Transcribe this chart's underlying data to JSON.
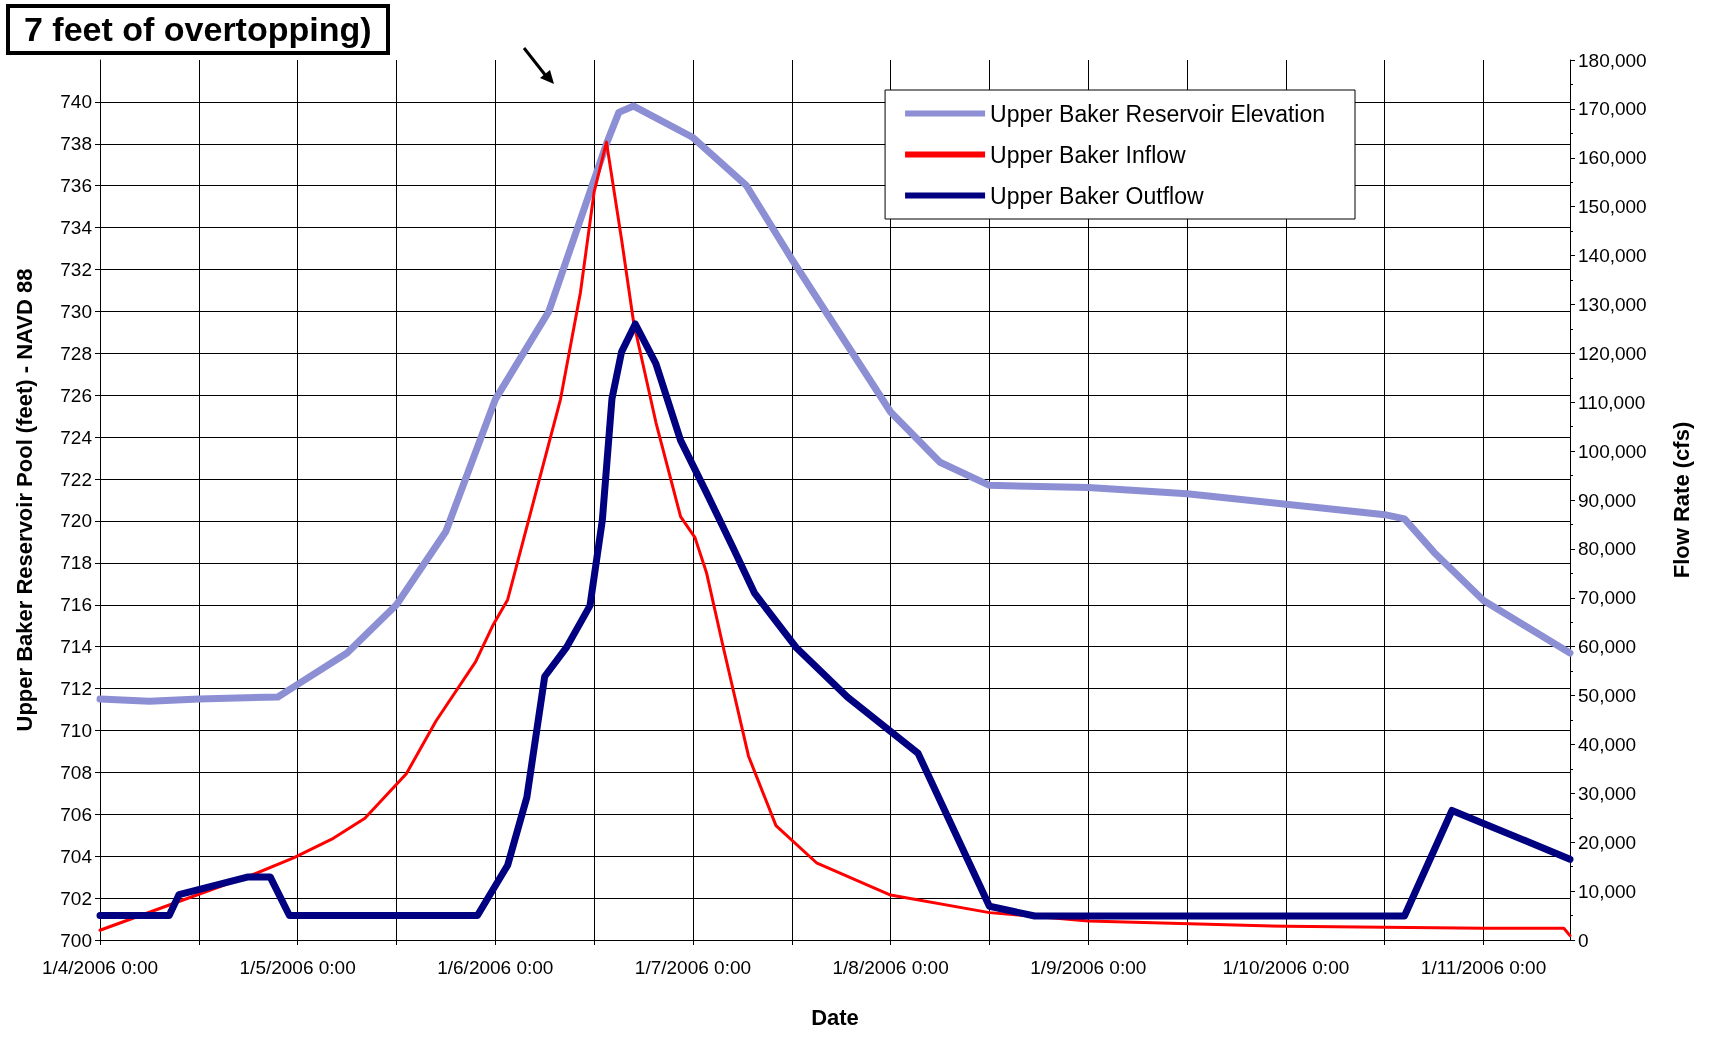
{
  "chart_data": {
    "type": "line",
    "xlabel": "Date",
    "ylabel": "Upper Baker Reservoir Pool (feet) - NAVD 88",
    "y2label": "Flow Rate (cfs)",
    "annotations": [
      "7 feet of overtopping)"
    ],
    "xlim": [
      "2006-01-04T00:00",
      "2006-01-11T10:30"
    ],
    "xticks": [
      {
        "value": "2006-01-04T00:00",
        "label": "1/4/2006 0:00"
      },
      {
        "value": "2006-01-04T12:00",
        "label": null
      },
      {
        "value": "2006-01-05T00:00",
        "label": "1/5/2006 0:00"
      },
      {
        "value": "2006-01-05T12:00",
        "label": null
      },
      {
        "value": "2006-01-06T00:00",
        "label": "1/6/2006 0:00"
      },
      {
        "value": "2006-01-06T12:00",
        "label": null
      },
      {
        "value": "2006-01-07T00:00",
        "label": "1/7/2006 0:00"
      },
      {
        "value": "2006-01-07T12:00",
        "label": null
      },
      {
        "value": "2006-01-08T00:00",
        "label": "1/8/2006 0:00"
      },
      {
        "value": "2006-01-08T12:00",
        "label": null
      },
      {
        "value": "2006-01-09T00:00",
        "label": "1/9/2006 0:00"
      },
      {
        "value": "2006-01-09T12:00",
        "label": null
      },
      {
        "value": "2006-01-10T00:00",
        "label": "1/10/2006 0:00"
      },
      {
        "value": "2006-01-10T12:00",
        "label": null
      },
      {
        "value": "2006-01-11T00:00",
        "label": "1/11/2006 0:00"
      }
    ],
    "ylim": [
      700,
      742
    ],
    "yticks": [
      700,
      702,
      704,
      706,
      708,
      710,
      712,
      714,
      716,
      718,
      720,
      722,
      724,
      726,
      728,
      730,
      732,
      734,
      736,
      738,
      740
    ],
    "y2lim": [
      0,
      180000
    ],
    "y2ticks": [
      0,
      {
        "value": 10000,
        "label": "10,000"
      },
      {
        "value": 20000,
        "label": "20,000"
      },
      {
        "value": 30000,
        "label": "30,000"
      },
      {
        "value": 40000,
        "label": "40,000"
      },
      {
        "value": 50000,
        "label": "50,000"
      },
      {
        "value": 60000,
        "label": "60,000"
      },
      {
        "value": 70000,
        "label": "70,000"
      },
      {
        "value": 80000,
        "label": "80,000"
      },
      {
        "value": 90000,
        "label": "90,000"
      },
      {
        "value": 100000,
        "label": "100,000"
      },
      {
        "value": 110000,
        "label": "110,000"
      },
      {
        "value": 120000,
        "label": "120,000"
      },
      {
        "value": 130000,
        "label": "130,000"
      },
      {
        "value": 140000,
        "label": "140,000"
      },
      {
        "value": 150000,
        "label": "150,000"
      },
      {
        "value": 160000,
        "label": "160,000"
      },
      {
        "value": 170000,
        "label": "170,000"
      },
      {
        "value": 180000,
        "label": "180,000"
      }
    ],
    "grid": true,
    "legend": "top right",
    "marker": "none",
    "line_style": "solid",
    "series": [
      {
        "name": "Upper Baker Reservoir Elevation",
        "color": "#8c8fd4",
        "x": [
          "2006-01-04T00:00",
          "2006-01-04T06:00",
          "2006-01-04T12:00",
          "2006-01-04T21:36",
          "2006-01-05T00:00",
          "2006-01-05T06:00",
          "2006-01-05T12:00",
          "2006-01-05T18:00",
          "2006-01-06T00:00",
          "2006-01-06T06:30",
          "2006-01-06T13:30",
          "2006-01-06T15:00",
          "2006-01-06T16:48",
          "2006-01-07T00:00",
          "2006-01-07T06:30",
          "2006-01-07T12:00",
          "2006-01-08T00:00",
          "2006-01-08T06:00",
          "2006-01-08T12:00",
          "2006-01-09T00:00",
          "2006-01-09T12:00",
          "2006-01-10T00:00",
          "2006-01-10T12:00",
          "2006-01-10T14:24",
          "2006-01-10T18:00",
          "2006-01-11T00:00",
          "2006-01-11T10:30"
        ],
        "values": [
          711.5,
          711.4,
          711.5,
          711.6,
          712.2,
          713.7,
          716.0,
          719.5,
          725.8,
          730,
          738,
          739.5,
          739.8,
          738.3,
          736,
          732.5,
          725.2,
          722.8,
          721.7,
          721.6,
          721.3,
          720.8,
          720.3,
          720.1,
          718.5,
          716.2,
          713.7
        ]
      },
      {
        "name": "Upper Baker Inflow",
        "color": "#ff0000",
        "axis": "y2",
        "x": [
          "2006-01-04T00:00",
          "2006-01-04T18:45",
          "2006-01-04T23:30",
          "2006-01-05T04:20",
          "2006-01-05T08:10",
          "2006-01-05T13:12",
          "2006-01-05T16:48",
          "2006-01-05T21:36",
          "2006-01-05T23:45",
          "2006-01-06T01:30",
          "2006-01-06T04:48",
          "2006-01-06T07:55",
          "2006-01-06T10:20",
          "2006-01-06T12:00",
          "2006-01-06T13:30",
          "2006-01-06T15:20",
          "2006-01-06T16:48",
          "2006-01-06T19:30",
          "2006-01-06T22:30",
          "2006-01-07T00:15",
          "2006-01-07T01:40",
          "2006-01-07T03:36",
          "2006-01-07T06:45",
          "2006-01-07T10:05",
          "2006-01-07T15:00",
          "2006-01-08T00:00",
          "2006-01-08T12:00",
          "2006-01-09T00:00",
          "2006-01-10T00:00",
          "2006-01-11T00:00",
          "2006-01-11T09:45",
          "2006-01-11T10:30"
        ],
        "values": [
          2000,
          13500,
          16800,
          20800,
          24900,
          34000,
          44800,
          56900,
          64500,
          69600,
          90700,
          110600,
          132400,
          153000,
          163200,
          143300,
          126300,
          105900,
          86600,
          82300,
          75000,
          60500,
          37600,
          23400,
          15800,
          9200,
          5600,
          3900,
          2800,
          2400,
          2400,
          900
        ]
      },
      {
        "name": "Upper Baker Outflow",
        "color": "#000080",
        "axis": "y2",
        "x": [
          "2006-01-04T00:00",
          "2006-01-04T08:24",
          "2006-01-04T09:36",
          "2006-01-04T18:00",
          "2006-01-04T20:40",
          "2006-01-04T23:00",
          "2006-01-05T21:50",
          "2006-01-06T01:30",
          "2006-01-06T03:50",
          "2006-01-06T06:00",
          "2006-01-06T08:40",
          "2006-01-06T11:30",
          "2006-01-06T13:00",
          "2006-01-06T14:10",
          "2006-01-06T15:20",
          "2006-01-06T17:00",
          "2006-01-06T19:30",
          "2006-01-06T22:30",
          "2006-01-07T01:40",
          "2006-01-07T04:48",
          "2006-01-07T07:30",
          "2006-01-07T12:30",
          "2006-01-07T18:45",
          "2006-01-08T03:20",
          "2006-01-08T12:00",
          "2006-01-08T17:30",
          "2006-01-10T14:24",
          "2006-01-10T20:10",
          "2006-01-11T05:15",
          "2006-01-11T10:30"
        ],
        "values": [
          5000,
          5000,
          9300,
          12900,
          12900,
          5000,
          5000,
          15300,
          29200,
          53900,
          59900,
          68400,
          85900,
          110700,
          120300,
          126000,
          117900,
          102200,
          91400,
          80500,
          70900,
          59900,
          49700,
          38200,
          6900,
          4900,
          4900,
          26500,
          20200,
          16500
        ]
      }
    ]
  }
}
